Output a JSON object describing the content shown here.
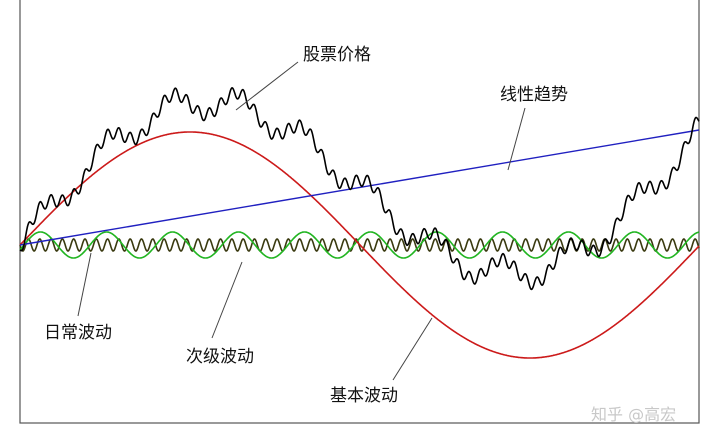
{
  "labels": {
    "stock_price": "股票价格",
    "linear_trend": "线性趋势",
    "daily_fluctuation": "日常波动",
    "secondary_fluctuation": "次级波动",
    "primary_fluctuation": "基本波动"
  },
  "watermark": "知乎 @高宏",
  "colors": {
    "stock_price": "#000000",
    "linear_trend": "#2020c0",
    "primary_wave": "#cc1a1a",
    "secondary_wave": "#22b522",
    "daily_wave": "#3a3a10",
    "frame": "#555555"
  }
}
